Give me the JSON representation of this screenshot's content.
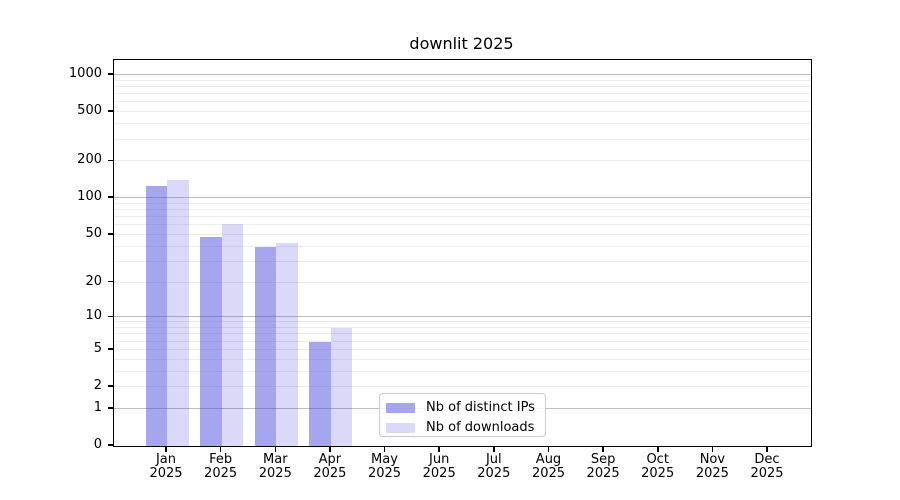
{
  "chart_data": {
    "type": "bar",
    "title": "downlit 2025",
    "categories": [
      "Jan",
      "Feb",
      "Mar",
      "Apr",
      "May",
      "Jun",
      "Jul",
      "Aug",
      "Sep",
      "Oct",
      "Nov",
      "Dec"
    ],
    "category_year": "2025",
    "series": [
      {
        "name": "Nb of distinct IPs",
        "color": "rgba(68,68,221,0.48)",
        "values": [
          125,
          48,
          40,
          6,
          0,
          0,
          0,
          0,
          0,
          0,
          0,
          0
        ]
      },
      {
        "name": "Nb of downloads",
        "color": "rgba(68,68,221,0.20)",
        "values": [
          140,
          62,
          43,
          8,
          0,
          0,
          0,
          0,
          0,
          0,
          0,
          0
        ]
      }
    ],
    "y_axis": {
      "scale": "log1p",
      "tick_values": [
        0,
        1,
        2,
        5,
        10,
        20,
        50,
        100,
        200,
        500,
        1000
      ],
      "major_gridline_values": [
        1,
        10,
        100,
        1000
      ],
      "minor_gridline_decades": [
        1,
        10,
        100
      ],
      "ylim_top": 1320
    },
    "legend_position": "lower-center-inside",
    "colors": {
      "background": "#ffffff",
      "axis": "#000000",
      "text": "#000000",
      "major_grid": "#bdbdbd",
      "minor_grid": "#ececec"
    }
  }
}
